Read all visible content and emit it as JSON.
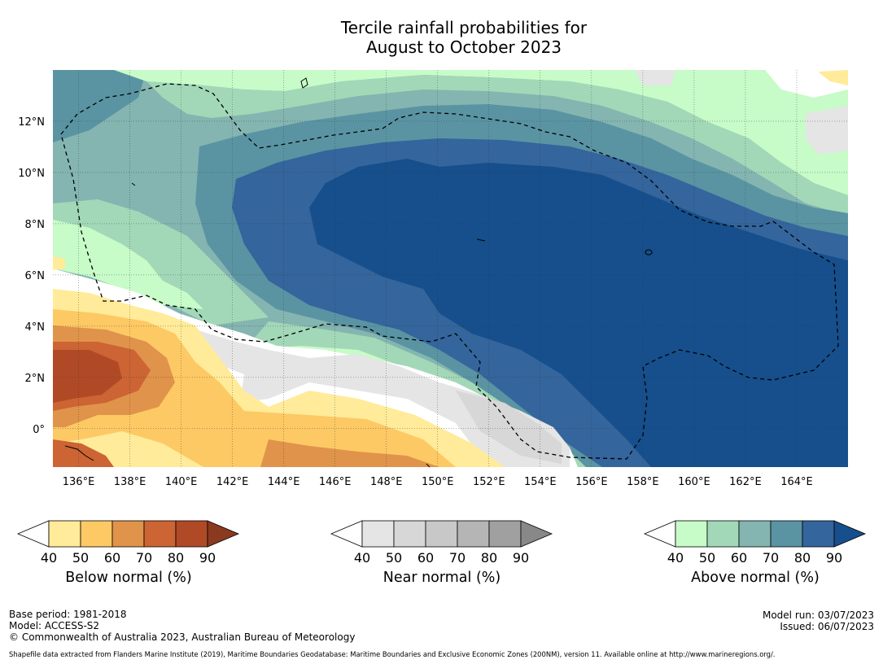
{
  "title": {
    "line1": "Tercile rainfall probabilities for",
    "line2": "August to October 2023"
  },
  "map": {
    "lon_labels": [
      "136°E",
      "138°E",
      "140°E",
      "142°E",
      "144°E",
      "146°E",
      "148°E",
      "150°E",
      "152°E",
      "154°E",
      "156°E",
      "158°E",
      "160°E",
      "162°E",
      "164°E"
    ],
    "lon_values": [
      136,
      138,
      140,
      142,
      144,
      146,
      148,
      150,
      152,
      154,
      156,
      158,
      160,
      162,
      164
    ],
    "lat_labels": [
      "12°N",
      "10°N",
      "8°N",
      "6°N",
      "4°N",
      "2°N",
      "0°"
    ],
    "lat_values": [
      12,
      10,
      8,
      6,
      4,
      2,
      0
    ],
    "lon_range": [
      135,
      166
    ],
    "lat_range": [
      -1.5,
      14
    ],
    "grid": true
  },
  "colorbars": [
    {
      "label": "Below normal (%)",
      "ticks": [
        "40",
        "50",
        "60",
        "70",
        "80",
        "90"
      ],
      "colors": [
        "#ffffff",
        "#ffeb99",
        "#fdc964",
        "#e0934a",
        "#cc6433",
        "#b04a26",
        "#8b3a1f"
      ]
    },
    {
      "label": "Near normal (%)",
      "ticks": [
        "40",
        "50",
        "60",
        "70",
        "80",
        "90"
      ],
      "colors": [
        "#ffffff",
        "#e5e5e5",
        "#d7d7d7",
        "#c8c8c8",
        "#b5b5b5",
        "#a0a0a0",
        "#888888"
      ]
    },
    {
      "label": "Above normal (%)",
      "ticks": [
        "40",
        "50",
        "60",
        "70",
        "80",
        "90"
      ],
      "colors": [
        "#ffffff",
        "#c7fbc8",
        "#a2d8b7",
        "#84b5b0",
        "#5a94a3",
        "#34659c",
        "#164f8c"
      ]
    }
  ],
  "footer": {
    "base_period": "Base period: 1981-2018",
    "model": "Model: ACCESS-S2",
    "copyright": "© Commonwealth of Australia 2023, Australian Bureau of Meteorology",
    "model_run": "Model run: 03/07/2023",
    "issued": "Issued: 06/07/2023",
    "credit": "Shapefile data extracted from Flanders Marine Institute (2019), Maritime Boundaries Geodatabase: Maritime Boundaries and Exclusive Economic Zones (200NM), version 11. Available online at http://www.marineregions.org/."
  }
}
